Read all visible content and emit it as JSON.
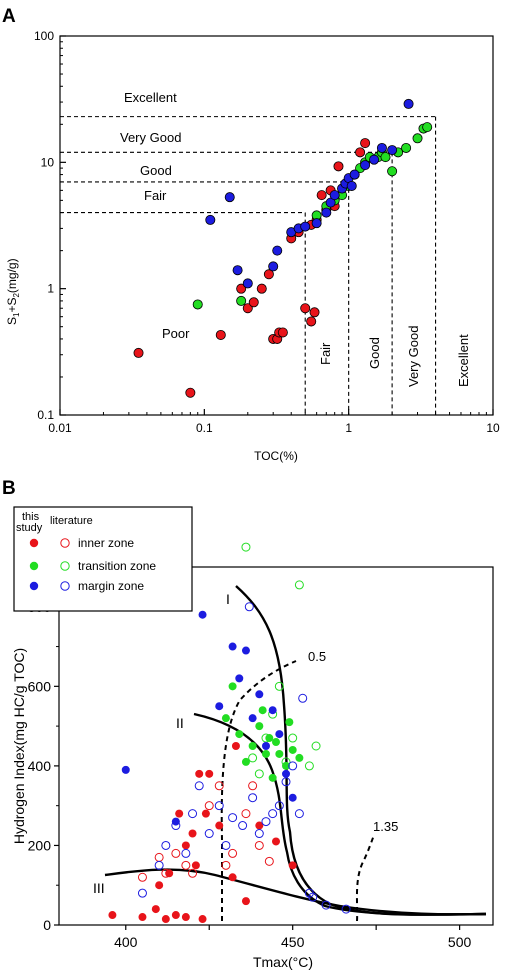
{
  "colors": {
    "inner": "#e8141a",
    "transition": "#22dd22",
    "margin": "#1c1ce0",
    "line": "#000000"
  },
  "panel_a": {
    "label": "A",
    "xlabel": "TOC(%)",
    "ylabel_main": "S",
    "ylabel_tail": "+S",
    "ylabel_unit": "(mg/g)",
    "sub1": "1",
    "sub2": "2",
    "class_labels": {
      "excellent_h": "Excellent",
      "very_good_h": "Very Good",
      "good_h": "Good",
      "fair_h": "Fair",
      "poor": "Poor",
      "fair_v": "Fair",
      "good_v": "Good",
      "very_good_v": "Very Good",
      "excellent_v": "Excellent"
    }
  },
  "panel_b": {
    "label": "B",
    "xlabel": "Tmax(°C)",
    "ylabel": "Hydrogen Index(mg HC/g TOC)",
    "legend": {
      "col_this": [
        "this",
        "study"
      ],
      "col_lit": "literature",
      "items": [
        "inner zone",
        "transition zone",
        "margin zone"
      ]
    },
    "curve_labels": {
      "I": "I",
      "II": "II",
      "III": "III",
      "ro05": "0.5",
      "ro135": "1.35"
    }
  },
  "chart_data": [
    {
      "type": "scatter",
      "title": "",
      "xlabel": "TOC(%)",
      "ylabel": "S1+S2(mg/g)",
      "xscale": "log",
      "yscale": "log",
      "xlim": [
        0.01,
        10
      ],
      "ylim": [
        0.1,
        100
      ],
      "x_ticks": [
        "0.01",
        "0.1",
        "1",
        "10"
      ],
      "y_ticks": [
        "0.1",
        "1",
        "10",
        "100"
      ],
      "thresholds": {
        "toc": [
          0.5,
          1,
          2,
          4
        ],
        "s1s2": [
          4,
          7,
          12,
          23
        ]
      },
      "series": [
        {
          "name": "inner zone",
          "points": [
            [
              0.035,
              0.31
            ],
            [
              0.08,
              0.15
            ],
            [
              0.13,
              0.43
            ],
            [
              0.18,
              1.0
            ],
            [
              0.2,
              0.7
            ],
            [
              0.22,
              0.78
            ],
            [
              0.25,
              1.0
            ],
            [
              0.28,
              1.3
            ],
            [
              0.3,
              0.4
            ],
            [
              0.32,
              0.4
            ],
            [
              0.33,
              0.45
            ],
            [
              0.35,
              0.45
            ],
            [
              0.4,
              2.5
            ],
            [
              0.45,
              2.8
            ],
            [
              0.5,
              0.7
            ],
            [
              0.55,
              0.55
            ],
            [
              0.58,
              0.65
            ],
            [
              0.55,
              3.2
            ],
            [
              0.6,
              3.5
            ],
            [
              0.65,
              5.5
            ],
            [
              0.7,
              4.2
            ],
            [
              0.75,
              6.0
            ],
            [
              0.85,
              9.3
            ],
            [
              0.8,
              4.5
            ],
            [
              1.2,
              12
            ],
            [
              1.3,
              14.2
            ]
          ]
        },
        {
          "name": "transition zone",
          "points": [
            [
              0.09,
              0.75
            ],
            [
              0.18,
              0.8
            ],
            [
              0.6,
              3.8
            ],
            [
              0.7,
              4.5
            ],
            [
              0.8,
              5
            ],
            [
              0.9,
              5.5
            ],
            [
              1.0,
              6.5
            ],
            [
              1.1,
              8.0
            ],
            [
              1.2,
              9.0
            ],
            [
              1.3,
              10
            ],
            [
              1.4,
              11
            ],
            [
              1.6,
              11
            ],
            [
              1.7,
              12
            ],
            [
              1.8,
              11
            ],
            [
              2.0,
              8.5
            ],
            [
              2.2,
              12
            ],
            [
              2.5,
              13
            ],
            [
              3.0,
              15.5
            ],
            [
              3.3,
              18.5
            ],
            [
              3.5,
              19
            ]
          ]
        },
        {
          "name": "margin zone",
          "points": [
            [
              0.11,
              3.5
            ],
            [
              0.15,
              5.3
            ],
            [
              0.17,
              1.4
            ],
            [
              0.2,
              1.1
            ],
            [
              0.3,
              1.5
            ],
            [
              0.32,
              2.0
            ],
            [
              0.4,
              2.8
            ],
            [
              0.45,
              3.0
            ],
            [
              0.5,
              3.1
            ],
            [
              0.6,
              3.3
            ],
            [
              0.7,
              4.0
            ],
            [
              0.75,
              4.8
            ],
            [
              0.8,
              5.5
            ],
            [
              0.9,
              6.2
            ],
            [
              0.95,
              6.8
            ],
            [
              1.0,
              7.5
            ],
            [
              1.05,
              6.5
            ],
            [
              1.1,
              8.0
            ],
            [
              1.3,
              9.5
            ],
            [
              1.5,
              10.5
            ],
            [
              1.7,
              13
            ],
            [
              2.0,
              12.5
            ],
            [
              2.6,
              29
            ]
          ]
        }
      ]
    },
    {
      "type": "scatter",
      "title": "",
      "xlabel": "Tmax(°C)",
      "ylabel": "Hydrogen Index(mg HC/g TOC)",
      "xlim": [
        380,
        510
      ],
      "ylim": [
        0,
        900
      ],
      "x_ticks": [
        400,
        425,
        450,
        475,
        500
      ],
      "y_ticks": [
        0,
        200,
        400,
        600,
        800
      ],
      "series": [
        {
          "name": "inner zone",
          "marker": "filled",
          "points": [
            [
              396,
              25
            ],
            [
              405,
              20
            ],
            [
              409,
              40
            ],
            [
              410,
              100
            ],
            [
              412,
              15
            ],
            [
              413,
              130
            ],
            [
              415,
              25
            ],
            [
              416,
              280
            ],
            [
              418,
              200
            ],
            [
              418,
              20
            ],
            [
              420,
              230
            ],
            [
              421,
              150
            ],
            [
              422,
              380
            ],
            [
              423,
              15
            ],
            [
              424,
              280
            ],
            [
              425,
              380
            ],
            [
              428,
              250
            ],
            [
              432,
              120
            ],
            [
              433,
              450
            ],
            [
              436,
              60
            ],
            [
              440,
              250
            ],
            [
              445,
              210
            ],
            [
              450,
              150
            ]
          ]
        },
        {
          "name": "inner zone",
          "marker": "open",
          "points": [
            [
              405,
              120
            ],
            [
              410,
              170
            ],
            [
              412,
              130
            ],
            [
              415,
              180
            ],
            [
              418,
              150
            ],
            [
              420,
              130
            ],
            [
              425,
              300
            ],
            [
              428,
              350
            ],
            [
              430,
              150
            ],
            [
              432,
              180
            ],
            [
              436,
              280
            ],
            [
              438,
              350
            ],
            [
              440,
              200
            ],
            [
              443,
              160
            ]
          ]
        },
        {
          "name": "transition zone",
          "marker": "filled",
          "points": [
            [
              430,
              520
            ],
            [
              432,
              600
            ],
            [
              434,
              480
            ],
            [
              436,
              410
            ],
            [
              438,
              450
            ],
            [
              440,
              500
            ],
            [
              441,
              540
            ],
            [
              442,
              430
            ],
            [
              443,
              470
            ],
            [
              444,
              370
            ],
            [
              445,
              460
            ],
            [
              446,
              430
            ],
            [
              448,
              400
            ],
            [
              449,
              510
            ],
            [
              450,
              440
            ],
            [
              452,
              420
            ]
          ]
        },
        {
          "name": "transition zone",
          "marker": "open",
          "points": [
            [
              436,
              950
            ],
            [
              438,
              420
            ],
            [
              440,
              380
            ],
            [
              442,
              470
            ],
            [
              444,
              530
            ],
            [
              446,
              600
            ],
            [
              448,
              410
            ],
            [
              450,
              470
            ],
            [
              452,
              855
            ],
            [
              455,
              400
            ],
            [
              457,
              450
            ]
          ]
        },
        {
          "name": "margin zone",
          "marker": "filled",
          "points": [
            [
              400,
              390
            ],
            [
              415,
              260
            ],
            [
              423,
              780
            ],
            [
              428,
              550
            ],
            [
              432,
              700
            ],
            [
              434,
              620
            ],
            [
              436,
              690
            ],
            [
              438,
              520
            ],
            [
              440,
              580
            ],
            [
              442,
              450
            ],
            [
              444,
              540
            ],
            [
              446,
              480
            ],
            [
              448,
              380
            ],
            [
              450,
              320
            ]
          ]
        },
        {
          "name": "margin zone",
          "marker": "open",
          "points": [
            [
              405,
              80
            ],
            [
              410,
              150
            ],
            [
              412,
              200
            ],
            [
              415,
              250
            ],
            [
              418,
              180
            ],
            [
              420,
              280
            ],
            [
              422,
              350
            ],
            [
              425,
              230
            ],
            [
              428,
              300
            ],
            [
              430,
              200
            ],
            [
              432,
              270
            ],
            [
              435,
              250
            ],
            [
              437,
              800
            ],
            [
              438,
              320
            ],
            [
              440,
              230
            ],
            [
              442,
              260
            ],
            [
              444,
              280
            ],
            [
              446,
              300
            ],
            [
              448,
              360
            ],
            [
              450,
              400
            ],
            [
              452,
              280
            ],
            [
              453,
              570
            ],
            [
              455,
              80
            ],
            [
              456,
              70
            ],
            [
              460,
              50
            ],
            [
              466,
              40
            ]
          ]
        }
      ]
    }
  ]
}
